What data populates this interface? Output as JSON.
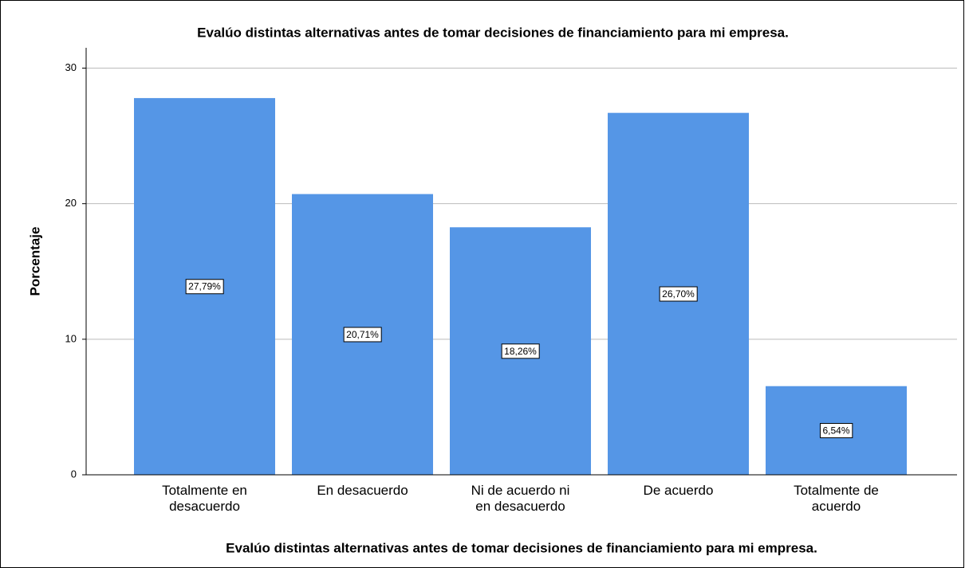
{
  "chart_data": {
    "type": "bar",
    "title": "Evalúo distintas alternativas antes de tomar decisiones de financiamiento para mi empresa.",
    "x_label": "Evalúo distintas alternativas antes de tomar decisiones de financiamiento para mi empresa.",
    "y_label": "Porcentaje",
    "categories": [
      "Totalmente en desacuerdo",
      "En desacuerdo",
      "Ni de acuerdo ni en desacuerdo",
      "De acuerdo",
      "Totalmente de acuerdo"
    ],
    "values": [
      27.79,
      20.71,
      18.26,
      26.7,
      6.54
    ],
    "value_labels": [
      "27,79%",
      "20,71%",
      "18,26%",
      "26,70%",
      "6,54%"
    ],
    "color": "#5596e6",
    "ylim": [
      0,
      31.5
    ],
    "yticks": [
      0,
      10,
      20,
      30
    ],
    "grid": true
  }
}
